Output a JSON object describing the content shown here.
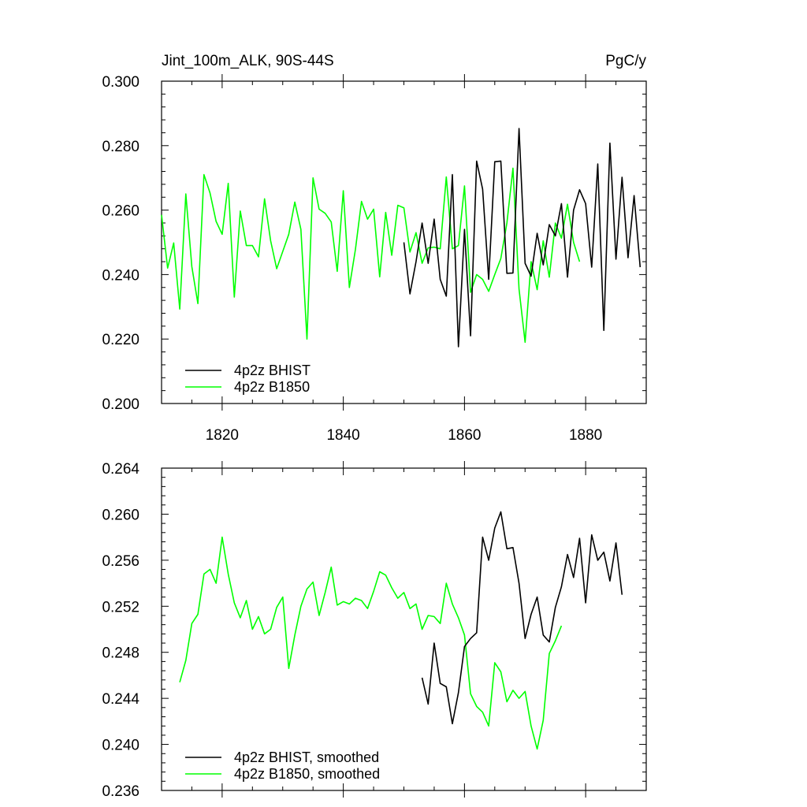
{
  "chart_data": [
    {
      "type": "line",
      "title": "Jint_100m_ALK, 90S-44S",
      "units": "PgC/y",
      "xlim": [
        1810,
        1890
      ],
      "ylim": [
        0.2,
        0.3
      ],
      "x_ticks": [
        1820,
        1840,
        1860,
        1880
      ],
      "y_ticks": [
        "0.200",
        "0.220",
        "0.240",
        "0.260",
        "0.280",
        "0.300"
      ],
      "legend_position": "bottom-left",
      "series": [
        {
          "name": "4p2z BHIST",
          "color": "#000000",
          "x_start": 1850,
          "values": [
            0.25,
            0.234,
            0.244,
            0.256,
            0.2435,
            0.2572,
            0.2385,
            0.2333,
            0.271,
            0.2176,
            0.254,
            0.221,
            0.2752,
            0.2665,
            0.2385,
            0.275,
            0.2752,
            0.2404,
            0.2405,
            0.2853,
            0.2435,
            0.2395,
            0.2528,
            0.243,
            0.2555,
            0.252,
            0.262,
            0.2392,
            0.26,
            0.2663,
            0.262,
            0.2423,
            0.2743,
            0.2227,
            0.2808,
            0.2448,
            0.2702,
            0.2452,
            0.2645,
            0.2423
          ]
        },
        {
          "name": "4p2z B1850",
          "color": "#00ff00",
          "x_start": 1810,
          "values": [
            0.2585,
            0.242,
            0.2498,
            0.2293,
            0.265,
            0.2425,
            0.231,
            0.271,
            0.2653,
            0.2565,
            0.2525,
            0.2683,
            0.233,
            0.2597,
            0.249,
            0.249,
            0.2455,
            0.2635,
            0.2505,
            0.2418,
            0.2472,
            0.2525,
            0.2625,
            0.254,
            0.22,
            0.27,
            0.2603,
            0.259,
            0.2563,
            0.241,
            0.266,
            0.236,
            0.2478,
            0.2627,
            0.2572,
            0.2603,
            0.2393,
            0.2593,
            0.246,
            0.2615,
            0.2607,
            0.247,
            0.253,
            0.2435,
            0.2483,
            0.2485,
            0.248,
            0.2703,
            0.248,
            0.249,
            0.2675,
            0.2345,
            0.24,
            0.2385,
            0.2348,
            0.24,
            0.245,
            0.256,
            0.273,
            0.2355,
            0.219,
            0.244,
            0.2353,
            0.2505,
            0.2392,
            0.256,
            0.2513,
            0.2618,
            0.25,
            0.244
          ]
        }
      ]
    },
    {
      "type": "line",
      "title": "",
      "xlim": [
        1810,
        1890
      ],
      "ylim": [
        0.236,
        0.264
      ],
      "x_ticks": [
        1820,
        1840,
        1860,
        1880
      ],
      "y_ticks": [
        "0.236",
        "0.240",
        "0.244",
        "0.248",
        "0.252",
        "0.256",
        "0.260",
        "0.264"
      ],
      "legend_position": "bottom-left",
      "series": [
        {
          "name": "4p2z BHIST, smoothed",
          "color": "#000000",
          "x_start": 1853,
          "values": [
            0.2458,
            0.2435,
            0.2488,
            0.2453,
            0.245,
            0.2418,
            0.2445,
            0.2485,
            0.2492,
            0.2497,
            0.258,
            0.256,
            0.2588,
            0.2602,
            0.257,
            0.2571,
            0.254,
            0.2492,
            0.2513,
            0.2528,
            0.2495,
            0.2489,
            0.2519,
            0.2537,
            0.2565,
            0.2545,
            0.2579,
            0.2523,
            0.2582,
            0.256,
            0.2567,
            0.2542,
            0.2575,
            0.253
          ]
        },
        {
          "name": "4p2z B1850, smoothed",
          "color": "#00ff00",
          "x_start": 1813,
          "values": [
            0.2454,
            0.2473,
            0.2505,
            0.2513,
            0.2548,
            0.2552,
            0.254,
            0.258,
            0.2548,
            0.2523,
            0.251,
            0.2525,
            0.25,
            0.2511,
            0.2496,
            0.25,
            0.2519,
            0.2528,
            0.2466,
            0.2495,
            0.252,
            0.2535,
            0.2541,
            0.2512,
            0.2532,
            0.2554,
            0.2521,
            0.2524,
            0.2522,
            0.2527,
            0.2525,
            0.2518,
            0.2533,
            0.255,
            0.2547,
            0.2536,
            0.2527,
            0.2532,
            0.2518,
            0.2522,
            0.25,
            0.2512,
            0.2511,
            0.2505,
            0.254,
            0.2522,
            0.251,
            0.2495,
            0.2444,
            0.2433,
            0.2428,
            0.2416,
            0.2471,
            0.2463,
            0.2437,
            0.2447,
            0.244,
            0.2446,
            0.2416,
            0.2396,
            0.2421,
            0.2479,
            0.249,
            0.2503
          ]
        }
      ]
    }
  ]
}
